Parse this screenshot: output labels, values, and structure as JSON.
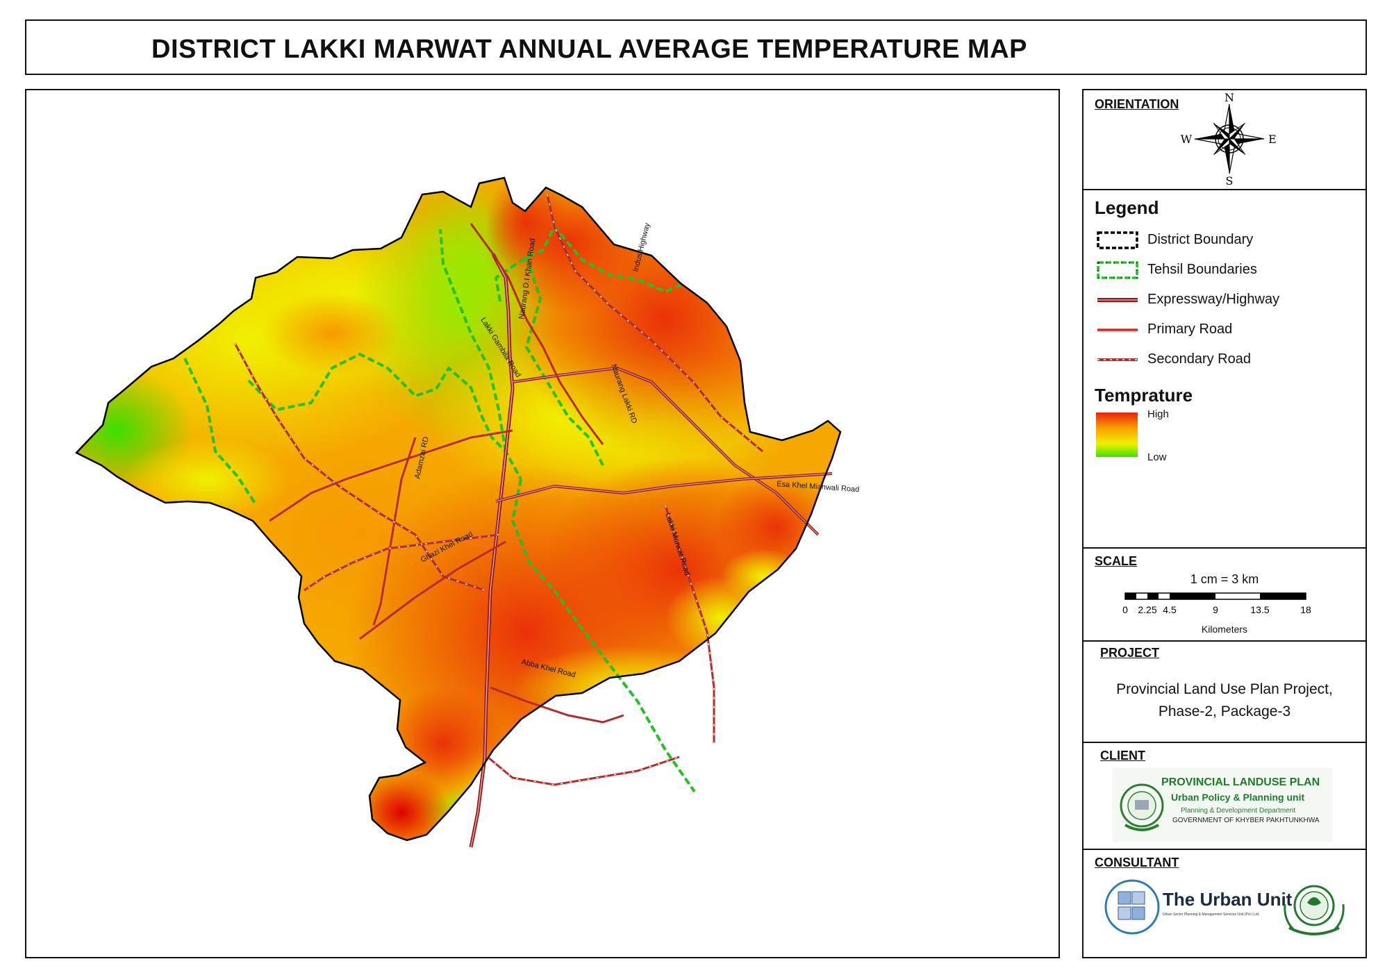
{
  "title": "DISTRICT LAKKI MARWAT ANNUAL AVERAGE  TEMPERATURE MAP",
  "map": {
    "road_labels": {
      "naurang_dkhan": "Naurang D.I Khan Road",
      "lakki_gambila": "Lakki Gambila Road",
      "indus_highway": "Indus Highway",
      "naurang_lakki": "Naurang Lakki RD",
      "adamzai": "Adamzai RD",
      "esa_khel": "Esa Khel Mianwali Road",
      "ghazi_khel": "Ghazi Khel Road",
      "lakki_marwat": "Lakki Marwat Road",
      "abba_khel": "Abba Khel Road"
    }
  },
  "orientation": {
    "heading": "ORIENTATION",
    "north": "N",
    "south": "S",
    "east": "E",
    "west": "W"
  },
  "legend": {
    "heading": "Legend",
    "items": [
      {
        "label": "District Boundary",
        "icon": "district-boundary-symbol"
      },
      {
        "label": "Tehsil Boundaries",
        "icon": "tehsil-boundary-symbol"
      },
      {
        "label": "Expressway/Highway",
        "icon": "highway-symbol"
      },
      {
        "label": "Primary Road",
        "icon": "primary-road-symbol"
      },
      {
        "label": "Secondary Road",
        "icon": "secondary-road-symbol"
      }
    ],
    "ramp_heading": "Temprature",
    "ramp_high": "High",
    "ramp_low": "Low",
    "ramp_colors": [
      "#e8220a",
      "#f7a000",
      "#f0f000",
      "#3ce000"
    ]
  },
  "scale": {
    "heading": "SCALE",
    "ratio": "1 cm = 3 km",
    "ticks": [
      "0",
      "2.25",
      "4.5",
      "9",
      "13.5",
      "18"
    ],
    "units": "Kilometers"
  },
  "project": {
    "heading": "PROJECT",
    "line1": "Provincial Land Use Plan Project,",
    "line2": "Phase-2, Package-3"
  },
  "client": {
    "heading": "CLIENT",
    "logo_text1": "PROVINCIAL  LANDUSE PLAN",
    "logo_text2": "Urban Policy & Planning unit",
    "logo_text3": "Planning & Development Department",
    "logo_text4": "GOVERNMENT OF KHYBER PAKHTUNKHWA"
  },
  "consultant": {
    "heading": "CONSULTANT",
    "logo_text": "The Urban Unit",
    "logo_subtext": "Urban Sector Planning & Management Services Unit (Pvt.) Ltd."
  }
}
